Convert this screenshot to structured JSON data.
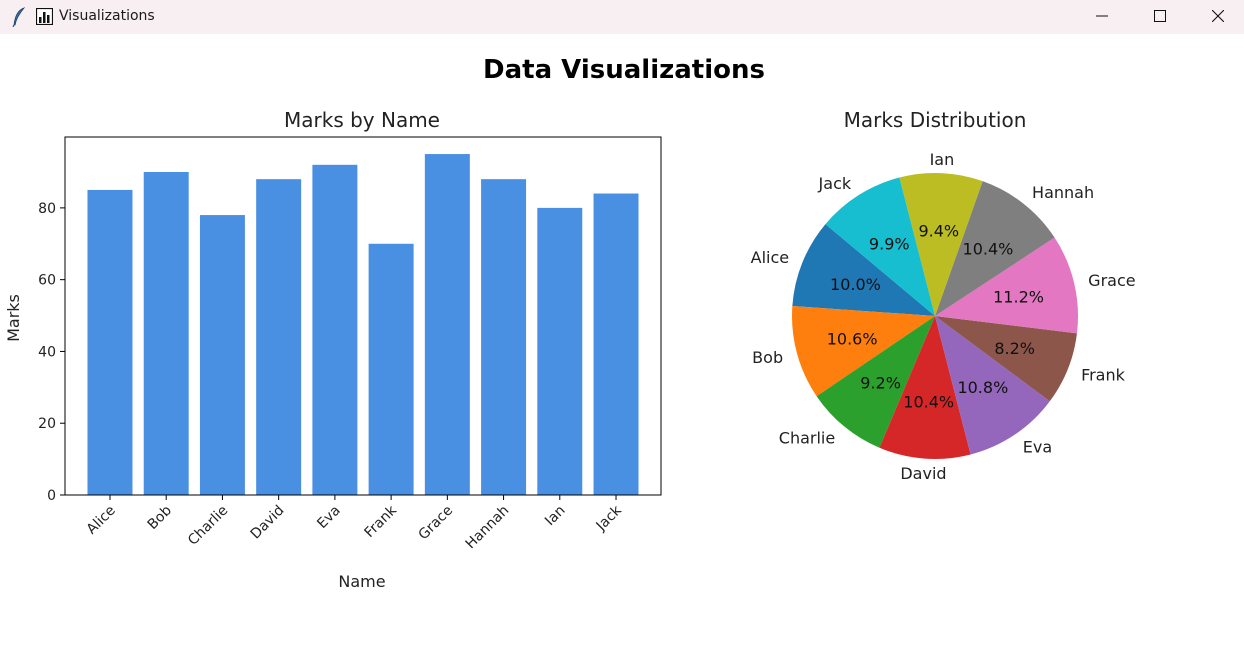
{
  "window": {
    "title": "Visualizations",
    "icons": {
      "app": "feather-icon",
      "chart": "bar-chart-icon",
      "minimize": "minimize-icon",
      "maximize": "maximize-icon",
      "close": "close-icon"
    }
  },
  "figure": {
    "suptitle": "Data Visualizations"
  },
  "chart_data": [
    {
      "type": "bar",
      "title": "Marks by Name",
      "xlabel": "Name",
      "ylabel": "Marks",
      "categories": [
        "Alice",
        "Bob",
        "Charlie",
        "David",
        "Eva",
        "Frank",
        "Grace",
        "Hannah",
        "Ian",
        "Jack"
      ],
      "values": [
        85,
        90,
        78,
        88,
        92,
        70,
        95,
        88,
        80,
        84
      ],
      "yticks": [
        0,
        20,
        40,
        60,
        80
      ],
      "ylim": [
        0,
        99.75
      ],
      "color": "#4a90e2",
      "grid": false
    },
    {
      "type": "pie",
      "title": "Marks Distribution",
      "labels": [
        "Alice",
        "Bob",
        "Charlie",
        "David",
        "Eva",
        "Frank",
        "Grace",
        "Hannah",
        "Ian",
        "Jack"
      ],
      "values": [
        85,
        90,
        78,
        88,
        92,
        70,
        95,
        88,
        80,
        84
      ],
      "percent_labels": [
        "10.0%",
        "10.6%",
        "9.2%",
        "10.4%",
        "10.8%",
        "8.2%",
        "11.2%",
        "10.4%",
        "9.4%",
        "9.9%"
      ],
      "colors": [
        "#1f77b4",
        "#ff7f0e",
        "#2ca02c",
        "#d62728",
        "#9467bd",
        "#8c564b",
        "#e377c2",
        "#7f7f7f",
        "#bcbd22",
        "#17becf"
      ],
      "start_angle_deg": 140,
      "direction": "counterclockwise"
    }
  ]
}
